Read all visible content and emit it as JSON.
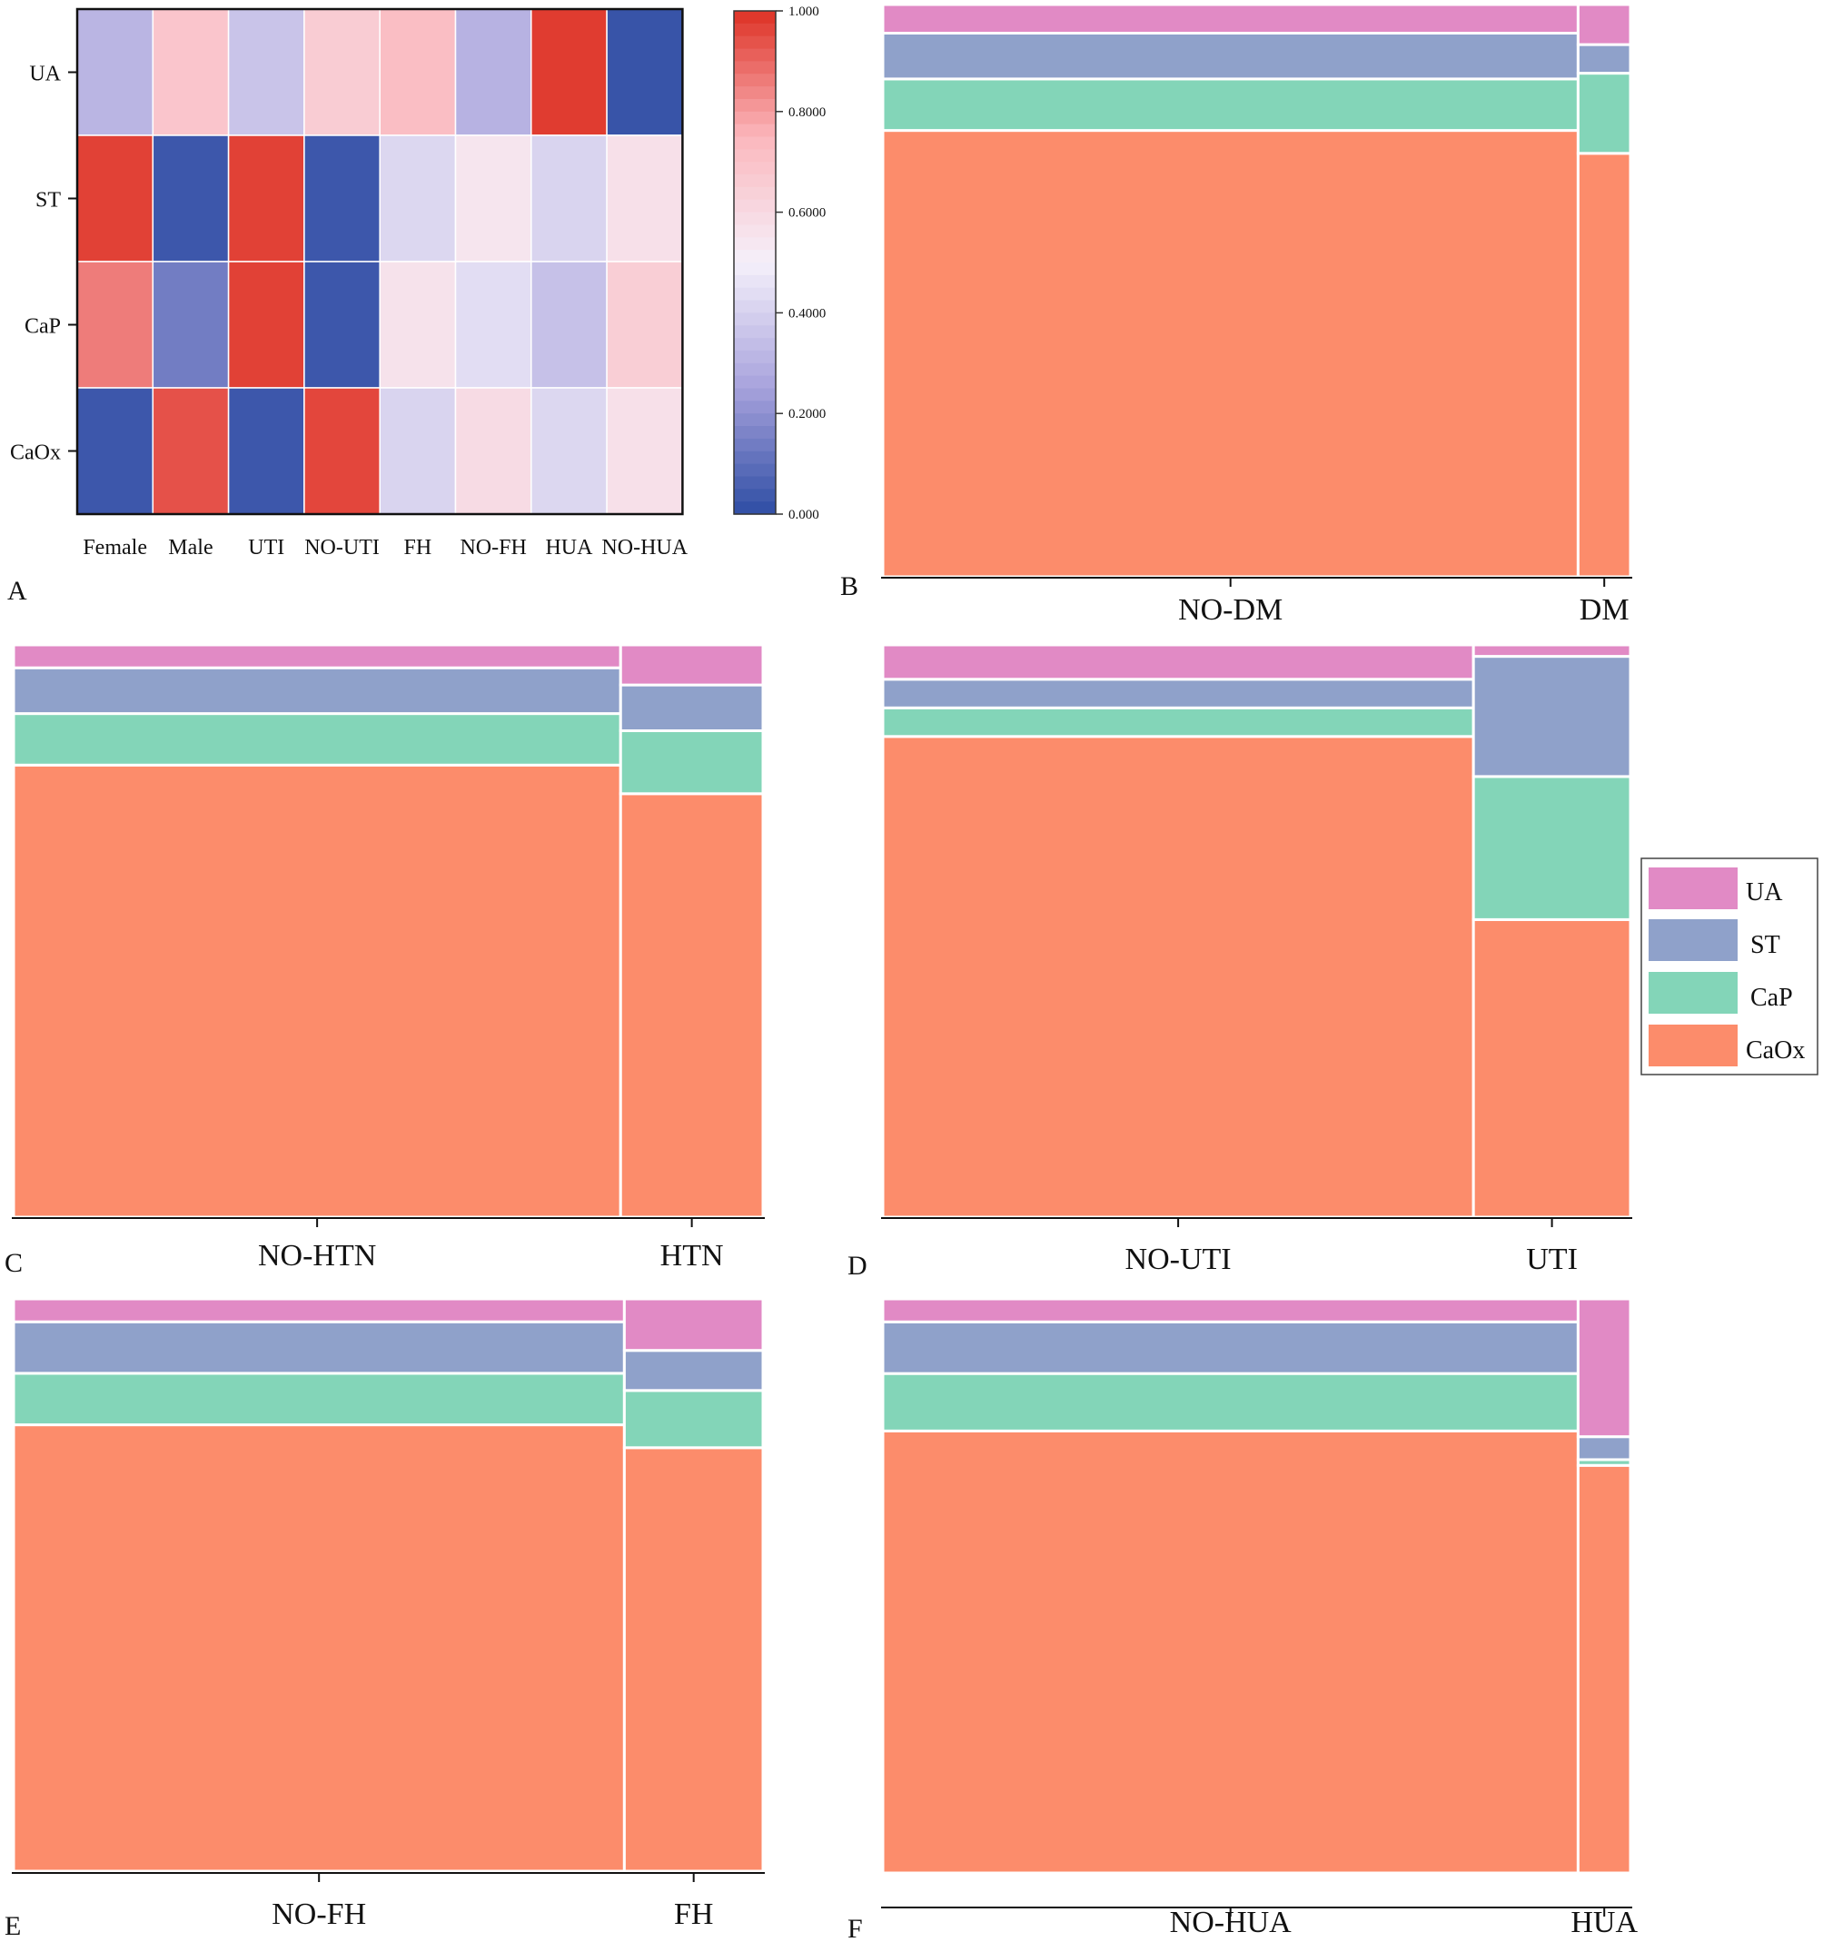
{
  "colors": {
    "UA": "#e18ac5",
    "ST": "#8fa1ca",
    "CaP": "#83d5b8",
    "CaOx": "#fc8c6b",
    "scale": [
      "#2e4da4",
      "#a7a2dc",
      "#f5f0fa",
      "#fbb7bd",
      "#de3124"
    ]
  },
  "legend": {
    "items": [
      {
        "label": "UA",
        "color_key": "UA"
      },
      {
        "label": "ST",
        "color_key": "ST"
      },
      {
        "label": "CaP",
        "color_key": "CaP"
      },
      {
        "label": "CaOx",
        "color_key": "CaOx"
      }
    ]
  },
  "chart_data": [
    {
      "panel": "A",
      "type": "heatmap",
      "rows": [
        "UA",
        "ST",
        "CaP",
        "CaOx"
      ],
      "columns": [
        "Female",
        "Male",
        "UTI",
        "NO-UTI",
        "FH",
        "NO-FH",
        "HUA",
        "NO-HUA"
      ],
      "values": [
        [
          0.31,
          0.69,
          0.36,
          0.66,
          0.72,
          0.3,
          0.98,
          0.02
        ],
        [
          0.97,
          0.03,
          0.97,
          0.03,
          0.42,
          0.55,
          0.41,
          0.57
        ],
        [
          0.86,
          0.14,
          0.97,
          0.03,
          0.56,
          0.44,
          0.35,
          0.65
        ],
        [
          0.03,
          0.94,
          0.03,
          0.96,
          0.41,
          0.59,
          0.42,
          0.57
        ]
      ],
      "colorbar": {
        "min": 0,
        "max": 1,
        "ticks": [
          "1.000",
          "0.8000",
          "0.6000",
          "0.4000",
          "0.2000",
          "0.000"
        ]
      }
    },
    {
      "panel": "B",
      "type": "mosaic",
      "categories": [
        "NO-DM",
        "DM"
      ],
      "widths": [
        0.93,
        0.07
      ],
      "series": [
        {
          "name": "UA",
          "values": [
            0.05,
            0.07
          ]
        },
        {
          "name": "ST",
          "values": [
            0.08,
            0.05
          ]
        },
        {
          "name": "CaP",
          "values": [
            0.09,
            0.14
          ]
        },
        {
          "name": "CaOx",
          "values": [
            0.78,
            0.74
          ]
        }
      ]
    },
    {
      "panel": "C",
      "type": "mosaic",
      "categories": [
        "NO-HTN",
        "HTN"
      ],
      "widths": [
        0.81,
        0.19
      ],
      "series": [
        {
          "name": "UA",
          "values": [
            0.04,
            0.07
          ]
        },
        {
          "name": "ST",
          "values": [
            0.08,
            0.08
          ]
        },
        {
          "name": "CaP",
          "values": [
            0.09,
            0.11
          ]
        },
        {
          "name": "CaOx",
          "values": [
            0.79,
            0.74
          ]
        }
      ]
    },
    {
      "panel": "D",
      "type": "mosaic",
      "categories": [
        "NO-UTI",
        "UTI"
      ],
      "widths": [
        0.79,
        0.21
      ],
      "series": [
        {
          "name": "UA",
          "values": [
            0.06,
            0.02
          ]
        },
        {
          "name": "ST",
          "values": [
            0.05,
            0.21
          ]
        },
        {
          "name": "CaP",
          "values": [
            0.05,
            0.25
          ]
        },
        {
          "name": "CaOx",
          "values": [
            0.84,
            0.52
          ]
        }
      ]
    },
    {
      "panel": "E",
      "type": "mosaic",
      "categories": [
        "NO-FH",
        "FH"
      ],
      "widths": [
        0.815,
        0.185
      ],
      "series": [
        {
          "name": "UA",
          "values": [
            0.04,
            0.09
          ]
        },
        {
          "name": "ST",
          "values": [
            0.09,
            0.07
          ]
        },
        {
          "name": "CaP",
          "values": [
            0.09,
            0.1
          ]
        },
        {
          "name": "CaOx",
          "values": [
            0.78,
            0.74
          ]
        }
      ]
    },
    {
      "panel": "F",
      "type": "mosaic",
      "categories": [
        "NO-HUA",
        "HUA"
      ],
      "widths": [
        0.93,
        0.07
      ],
      "series": [
        {
          "name": "UA",
          "values": [
            0.04,
            0.24
          ]
        },
        {
          "name": "ST",
          "values": [
            0.09,
            0.04
          ]
        },
        {
          "name": "CaP",
          "values": [
            0.1,
            0.01
          ]
        },
        {
          "name": "CaOx",
          "values": [
            0.77,
            0.71
          ]
        }
      ]
    }
  ]
}
